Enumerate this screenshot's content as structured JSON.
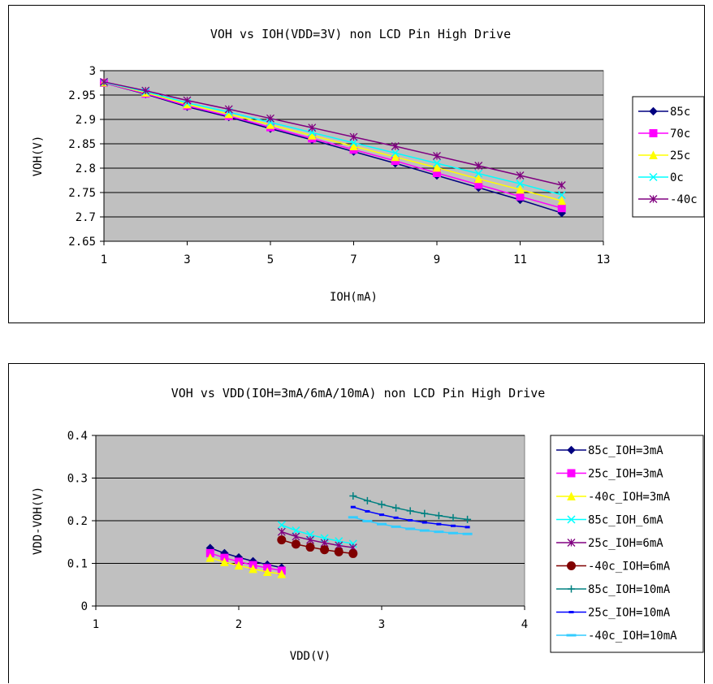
{
  "chart_data": [
    {
      "type": "line",
      "title": "VOH vs IOH(VDD=3V) non LCD Pin High Drive",
      "xlabel": "IOH(mA)",
      "ylabel": "VOH(V)",
      "xlim": [
        1,
        13
      ],
      "ylim": [
        2.65,
        3
      ],
      "xticks": [
        1,
        3,
        5,
        7,
        9,
        11,
        13
      ],
      "yticks": [
        2.65,
        2.7,
        2.75,
        2.8,
        2.85,
        2.9,
        2.95,
        3
      ],
      "xtick_labels": [
        "1",
        "3",
        "5",
        "7",
        "9",
        "11",
        "13"
      ],
      "ytick_labels": [
        "2.65",
        "2.7",
        "2.75",
        "2.8",
        "2.85",
        "2.9",
        "2.95",
        "3"
      ],
      "grid": "horizontal",
      "plot_background": "#c0c0c0",
      "legend_position": "right",
      "series": [
        {
          "name": "85c",
          "color": "#000080",
          "marker": "diamond",
          "x": [
            1,
            2,
            3,
            4,
            5,
            6,
            7,
            8,
            9,
            10,
            11,
            12
          ],
          "y": [
            2.975,
            2.952,
            2.926,
            2.905,
            2.881,
            2.858,
            2.834,
            2.81,
            2.785,
            2.76,
            2.735,
            2.708
          ]
        },
        {
          "name": "70c",
          "color": "#ff00ff",
          "marker": "square",
          "x": [
            1,
            2,
            3,
            4,
            5,
            6,
            7,
            8,
            9,
            10,
            11,
            12
          ],
          "y": [
            2.975,
            2.953,
            2.928,
            2.907,
            2.884,
            2.861,
            2.838,
            2.815,
            2.79,
            2.766,
            2.742,
            2.718
          ]
        },
        {
          "name": "25c",
          "color": "#ffff00",
          "marker": "triangle",
          "x": [
            1,
            2,
            3,
            4,
            5,
            6,
            7,
            8,
            9,
            10,
            11,
            12
          ],
          "y": [
            2.976,
            2.955,
            2.931,
            2.911,
            2.889,
            2.867,
            2.845,
            2.823,
            2.801,
            2.778,
            2.756,
            2.733
          ]
        },
        {
          "name": "0c",
          "color": "#00ffff",
          "marker": "x",
          "x": [
            1,
            2,
            3,
            4,
            5,
            6,
            7,
            8,
            9,
            10,
            11,
            12
          ],
          "y": [
            2.976,
            2.957,
            2.934,
            2.915,
            2.894,
            2.873,
            2.852,
            2.831,
            2.81,
            2.789,
            2.768,
            2.745
          ]
        },
        {
          "name": "-40c",
          "color": "#800080",
          "marker": "star",
          "x": [
            1,
            2,
            3,
            4,
            5,
            6,
            7,
            8,
            9,
            10,
            11,
            12
          ],
          "y": [
            2.977,
            2.959,
            2.939,
            2.921,
            2.902,
            2.883,
            2.864,
            2.845,
            2.825,
            2.805,
            2.785,
            2.765
          ]
        }
      ]
    },
    {
      "type": "line",
      "title": "VOH vs VDD(IOH=3mA/6mA/10mA) non LCD Pin High Drive",
      "xlabel": "VDD(V)",
      "ylabel": "VDD-VOH(V)",
      "xlim": [
        1,
        4
      ],
      "ylim": [
        0,
        0.4
      ],
      "xticks": [
        1,
        2,
        3,
        4
      ],
      "yticks": [
        0,
        0.1,
        0.2,
        0.3,
        0.4
      ],
      "xtick_labels": [
        "1",
        "2",
        "3",
        "4"
      ],
      "ytick_labels": [
        "0",
        "0.1",
        "0.2",
        "0.3",
        "0.4"
      ],
      "grid": "horizontal",
      "plot_background": "#c0c0c0",
      "legend_position": "right",
      "series": [
        {
          "name": "85c_IOH=3mA",
          "color": "#000080",
          "marker": "diamond",
          "x": [
            1.8,
            1.9,
            2.0,
            2.1,
            2.2,
            2.3
          ],
          "y": [
            0.136,
            0.124,
            0.114,
            0.105,
            0.097,
            0.09
          ]
        },
        {
          "name": "25c_IOH=3mA",
          "color": "#ff00ff",
          "marker": "square",
          "x": [
            1.8,
            1.9,
            2.0,
            2.1,
            2.2,
            2.3
          ],
          "y": [
            0.124,
            0.113,
            0.104,
            0.096,
            0.089,
            0.083
          ]
        },
        {
          "name": "-40c_IOH=3mA",
          "color": "#ffff00",
          "marker": "triangle",
          "x": [
            1.8,
            1.9,
            2.0,
            2.1,
            2.2,
            2.3
          ],
          "y": [
            0.113,
            0.103,
            0.095,
            0.087,
            0.08,
            0.075
          ]
        },
        {
          "name": "85c_IOH_6mA",
          "color": "#00ffff",
          "marker": "x",
          "x": [
            2.3,
            2.4,
            2.5,
            2.6,
            2.7,
            2.8
          ],
          "y": [
            0.19,
            0.177,
            0.167,
            0.159,
            0.152,
            0.146
          ]
        },
        {
          "name": "25c_IOH=6mA",
          "color": "#800080",
          "marker": "star",
          "x": [
            2.3,
            2.4,
            2.5,
            2.6,
            2.7,
            2.8
          ],
          "y": [
            0.174,
            0.163,
            0.155,
            0.148,
            0.142,
            0.137
          ]
        },
        {
          "name": "-40c_IOH=6mA",
          "color": "#800000",
          "marker": "circle",
          "x": [
            2.3,
            2.4,
            2.5,
            2.6,
            2.7,
            2.8
          ],
          "y": [
            0.155,
            0.145,
            0.138,
            0.132,
            0.127,
            0.123
          ]
        },
        {
          "name": "85c_IOH=10mA",
          "color": "#008080",
          "marker": "plus",
          "x": [
            2.8,
            2.9,
            3.0,
            3.1,
            3.2,
            3.3,
            3.4,
            3.5,
            3.6
          ],
          "y": [
            0.258,
            0.247,
            0.238,
            0.23,
            0.223,
            0.217,
            0.212,
            0.207,
            0.203
          ]
        },
        {
          "name": "25c_IOH=10mA",
          "color": "#0000ff",
          "marker": "dash",
          "x": [
            2.8,
            2.9,
            3.0,
            3.1,
            3.2,
            3.3,
            3.4,
            3.5,
            3.6
          ],
          "y": [
            0.232,
            0.222,
            0.214,
            0.207,
            0.201,
            0.196,
            0.192,
            0.188,
            0.185
          ]
        },
        {
          "name": "-40c_IOH=10mA",
          "color": "#33ccff",
          "marker": "bar",
          "x": [
            2.8,
            2.9,
            3.0,
            3.1,
            3.2,
            3.3,
            3.4,
            3.5,
            3.6
          ],
          "y": [
            0.208,
            0.199,
            0.192,
            0.186,
            0.181,
            0.177,
            0.174,
            0.171,
            0.169
          ]
        }
      ]
    }
  ]
}
